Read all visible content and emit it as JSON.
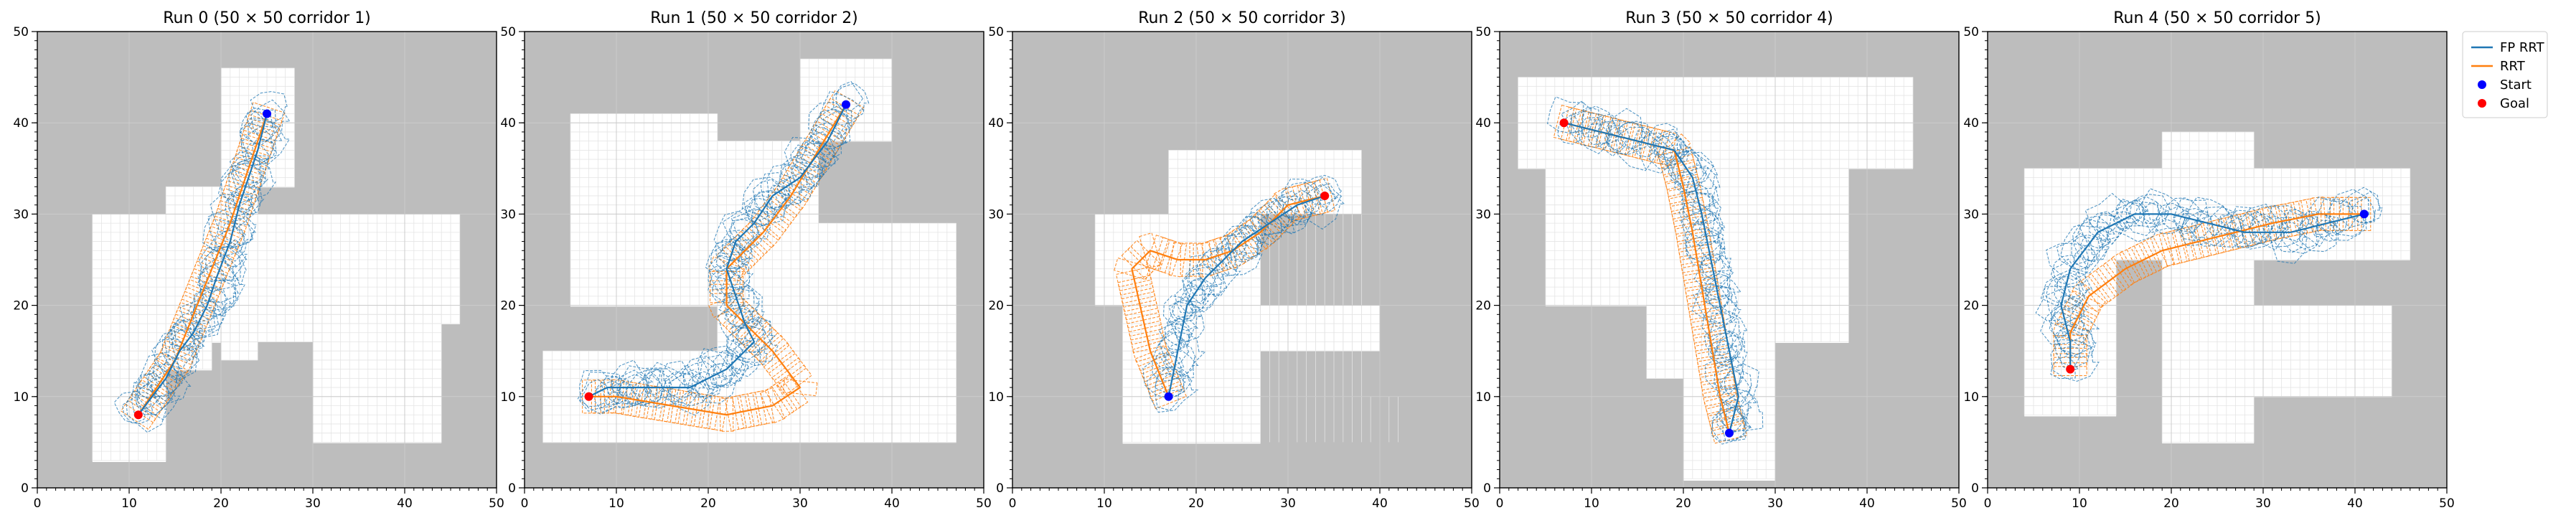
{
  "colors": {
    "obstacle": "#bdbdbd",
    "free": "#ffffff",
    "fp_rrt": "#1f77b4",
    "rrt": "#ff7f0e",
    "start": "#0000ff",
    "goal": "#ff0000"
  },
  "legend": {
    "placement": "outside-right-top",
    "items": [
      {
        "label": "FP RRT",
        "kind": "line",
        "color": "#1f77b4"
      },
      {
        "label": "RRT",
        "kind": "line",
        "color": "#ff7f0e"
      },
      {
        "label": "Start",
        "kind": "marker",
        "color": "#0000ff"
      },
      {
        "label": "Goal",
        "kind": "marker",
        "color": "#ff0000"
      }
    ]
  },
  "chart_data": [
    {
      "type": "line",
      "title": "Run 0 (50 × 50 corridor 1)",
      "xlim": [
        0,
        50
      ],
      "ylim": [
        0,
        50
      ],
      "xticks": [
        0,
        10,
        20,
        30,
        40,
        50
      ],
      "yticks": [
        0,
        10,
        20,
        30,
        40,
        50
      ],
      "grid": true,
      "free_cells": [
        [
          6,
          3,
          14,
          30
        ],
        [
          14,
          13,
          19,
          33
        ],
        [
          19,
          16,
          24,
          33
        ],
        [
          20,
          14,
          24,
          16
        ],
        [
          24,
          18,
          46,
          30
        ],
        [
          20,
          16,
          31,
          18
        ],
        [
          30,
          5,
          44,
          20
        ],
        [
          20,
          33,
          25,
          46
        ],
        [
          25,
          33,
          28,
          46
        ]
      ],
      "start": [
        25,
        41
      ],
      "goal": [
        11,
        8
      ],
      "series": [
        {
          "name": "FP RRT",
          "x": [
            25,
            24,
            23,
            22,
            21,
            19.5,
            18.5,
            17,
            15.5,
            14,
            12.5,
            11
          ],
          "y": [
            41,
            37,
            34,
            31,
            27,
            23,
            20,
            17,
            15,
            12,
            10,
            8
          ]
        },
        {
          "name": "RRT",
          "x": [
            25,
            23,
            21,
            19,
            17,
            15,
            13,
            11
          ],
          "y": [
            41,
            35,
            29,
            24,
            19,
            14,
            11,
            8
          ]
        }
      ]
    },
    {
      "type": "line",
      "title": "Run 1 (50 × 50 corridor 2)",
      "xlim": [
        0,
        50
      ],
      "ylim": [
        0,
        50
      ],
      "xticks": [
        0,
        10,
        20,
        30,
        40,
        50
      ],
      "yticks": [
        0,
        10,
        20,
        30,
        40,
        50
      ],
      "grid": true,
      "free_cells": [
        [
          2,
          5,
          47,
          15
        ],
        [
          5,
          20,
          21,
          41
        ],
        [
          21,
          15,
          24,
          36
        ],
        [
          24,
          13,
          32,
          38
        ],
        [
          32,
          15,
          47,
          29
        ],
        [
          30,
          38,
          40,
          47
        ],
        [
          21,
          36,
          30,
          38
        ]
      ],
      "start": [
        35,
        42
      ],
      "goal": [
        7,
        10
      ],
      "series": [
        {
          "name": "FP RRT",
          "x": [
            35,
            33,
            30,
            27,
            25,
            23,
            22,
            23,
            24,
            25,
            22,
            18,
            13,
            9,
            7
          ],
          "y": [
            42,
            38,
            34,
            32,
            29,
            27,
            24,
            21,
            18,
            16,
            13,
            11,
            11,
            11,
            10
          ]
        },
        {
          "name": "RRT",
          "x": [
            35,
            32,
            29,
            26,
            24,
            22,
            22,
            24,
            27,
            30,
            27,
            22,
            16,
            10,
            7
          ],
          "y": [
            42,
            37,
            32,
            28,
            26,
            24,
            20,
            18,
            15,
            11,
            9,
            8,
            9,
            10,
            10
          ]
        }
      ]
    },
    {
      "type": "line",
      "title": "Run 2 (50 × 50 corridor 3)",
      "xlim": [
        0,
        50
      ],
      "ylim": [
        0,
        50
      ],
      "xticks": [
        0,
        10,
        20,
        30,
        40,
        50
      ],
      "yticks": [
        0,
        10,
        20,
        30,
        40,
        50
      ],
      "grid": true,
      "free_cells": [
        [
          9,
          20,
          17,
          30
        ],
        [
          12,
          5,
          27,
          30
        ],
        [
          17,
          30,
          38,
          37
        ],
        [
          27,
          30,
          38,
          10
        ],
        [
          27,
          10,
          42,
          5
        ],
        [
          27,
          15,
          40,
          20
        ]
      ],
      "start": [
        17,
        10
      ],
      "goal": [
        34,
        32
      ],
      "series": [
        {
          "name": "FP RRT",
          "x": [
            17,
            18,
            19,
            21,
            23,
            25,
            28,
            31,
            34
          ],
          "y": [
            10,
            15,
            20,
            23,
            25,
            27,
            29,
            31,
            32
          ]
        },
        {
          "name": "RRT",
          "x": [
            17,
            15,
            13,
            15,
            18,
            21,
            24,
            27,
            30,
            34
          ],
          "y": [
            10,
            15,
            24,
            26,
            25,
            25,
            26,
            28,
            31,
            32
          ]
        }
      ]
    },
    {
      "type": "line",
      "title": "Run 3 (50 × 50 corridor 4)",
      "xlim": [
        0,
        50
      ],
      "ylim": [
        0,
        50
      ],
      "xticks": [
        0,
        10,
        20,
        30,
        40,
        50
      ],
      "yticks": [
        0,
        10,
        20,
        30,
        40,
        50
      ],
      "grid": true,
      "free_cells": [
        [
          2,
          35,
          45,
          45
        ],
        [
          5,
          20,
          20,
          35
        ],
        [
          20,
          1,
          30,
          35
        ],
        [
          30,
          16,
          38,
          35
        ],
        [
          16,
          12,
          20,
          20
        ]
      ],
      "start": [
        25,
        6
      ],
      "goal": [
        7,
        40
      ],
      "series": [
        {
          "name": "FP RRT",
          "x": [
            7,
            11,
            15,
            19,
            21,
            22,
            23,
            24,
            25,
            26,
            25
          ],
          "y": [
            40,
            39,
            38,
            37,
            34,
            30,
            25,
            20,
            15,
            10,
            6
          ]
        },
        {
          "name": "RRT",
          "x": [
            7,
            11,
            15,
            19,
            20,
            21,
            22,
            23,
            24,
            25
          ],
          "y": [
            40,
            39,
            38,
            37,
            33,
            28,
            22,
            16,
            10,
            6
          ]
        }
      ]
    },
    {
      "type": "line",
      "title": "Run 4 (50 × 50 corridor 5)",
      "xlim": [
        0,
        50
      ],
      "ylim": [
        0,
        50
      ],
      "xticks": [
        0,
        10,
        20,
        30,
        40,
        50
      ],
      "yticks": [
        0,
        10,
        20,
        30,
        40,
        50
      ],
      "grid": true,
      "free_cells": [
        [
          4,
          8,
          14,
          35
        ],
        [
          14,
          25,
          46,
          35
        ],
        [
          19,
          34,
          29,
          39
        ],
        [
          19,
          5,
          29,
          25
        ],
        [
          29,
          10,
          44,
          20
        ]
      ],
      "start": [
        41,
        30
      ],
      "goal": [
        9,
        13
      ],
      "series": [
        {
          "name": "FP RRT",
          "x": [
            41,
            37,
            33,
            28,
            24,
            20,
            16,
            12,
            9,
            8,
            9,
            9
          ],
          "y": [
            30,
            29,
            28,
            28,
            29,
            30,
            30,
            28,
            24,
            20,
            16,
            13
          ]
        },
        {
          "name": "RRT",
          "x": [
            41,
            36,
            31,
            27,
            23,
            19,
            15,
            11,
            9,
            9
          ],
          "y": [
            30,
            30,
            29,
            28,
            27,
            26,
            24,
            21,
            17,
            13
          ]
        }
      ]
    }
  ]
}
